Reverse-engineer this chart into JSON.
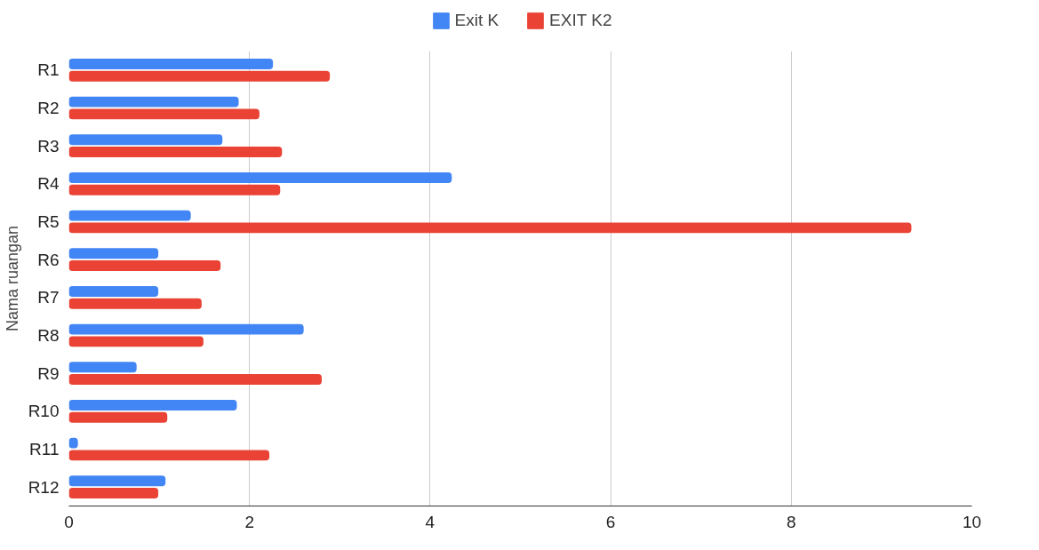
{
  "chart_data": {
    "type": "bar",
    "orientation": "horizontal",
    "ylabel": "Nama ruangan",
    "categories": [
      "R1",
      "R2",
      "R3",
      "R4",
      "R5",
      "R6",
      "R7",
      "R8",
      "R9",
      "R10",
      "R11",
      "R12"
    ],
    "series": [
      {
        "name": "Exit K",
        "color": "#4285f4",
        "values": [
          2.26,
          1.88,
          1.7,
          4.24,
          1.35,
          0.99,
          0.99,
          2.6,
          0.75,
          1.86,
          0.1,
          1.07
        ]
      },
      {
        "name": "EXIT K2",
        "color": "#ea4335",
        "values": [
          2.89,
          2.11,
          2.36,
          2.34,
          9.33,
          1.68,
          1.47,
          1.49,
          2.8,
          1.09,
          2.22,
          0.99
        ]
      }
    ],
    "xlim": [
      0,
      10
    ],
    "xticks": [
      0,
      2,
      4,
      6,
      8,
      10
    ],
    "grid": "x",
    "legend": "top"
  }
}
